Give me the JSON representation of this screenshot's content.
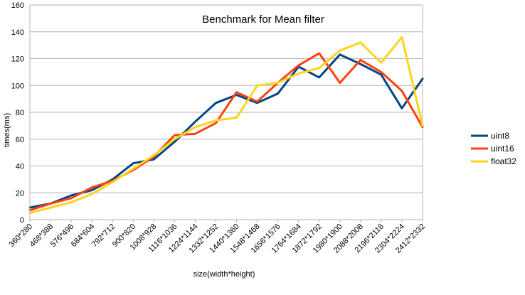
{
  "chart_data": {
    "type": "line",
    "title": "Benchmark for Mean filter",
    "xlabel": "size(width*height)",
    "ylabel": "times(ms)",
    "ylim": [
      0,
      160
    ],
    "yticks": [
      0,
      20,
      40,
      60,
      80,
      100,
      120,
      140,
      160
    ],
    "grid": "horizontal",
    "legend_position": "right",
    "categories": [
      "360*280",
      "468*388",
      "576*496",
      "684*604",
      "792*712",
      "900*820",
      "1008*928",
      "1116*1036",
      "1224*1144",
      "1332*1252",
      "1440*1360",
      "1548*1468",
      "1656*1576",
      "1764*1684",
      "1872*1792",
      "1980*1900",
      "2088*2008",
      "2196*2116",
      "2304*2224",
      "2412*2332"
    ],
    "series": [
      {
        "name": "uint8",
        "color": "#004586",
        "values": [
          9,
          12,
          18,
          22,
          30,
          42,
          45,
          58,
          73,
          87,
          93,
          87,
          94,
          114,
          106,
          123,
          116,
          108,
          83,
          105
        ]
      },
      {
        "name": "uint16",
        "color": "#ff420e",
        "values": [
          7,
          12,
          16,
          24,
          29,
          37,
          47,
          63,
          64,
          72,
          95,
          88,
          102,
          115,
          124,
          102,
          119,
          110,
          96,
          69
        ]
      },
      {
        "name": "float32",
        "color": "#ffd320",
        "values": [
          5,
          9,
          13,
          19,
          28,
          38,
          48,
          60,
          69,
          74,
          76,
          100,
          102,
          109,
          113,
          126,
          132,
          117,
          136,
          70
        ]
      }
    ]
  }
}
